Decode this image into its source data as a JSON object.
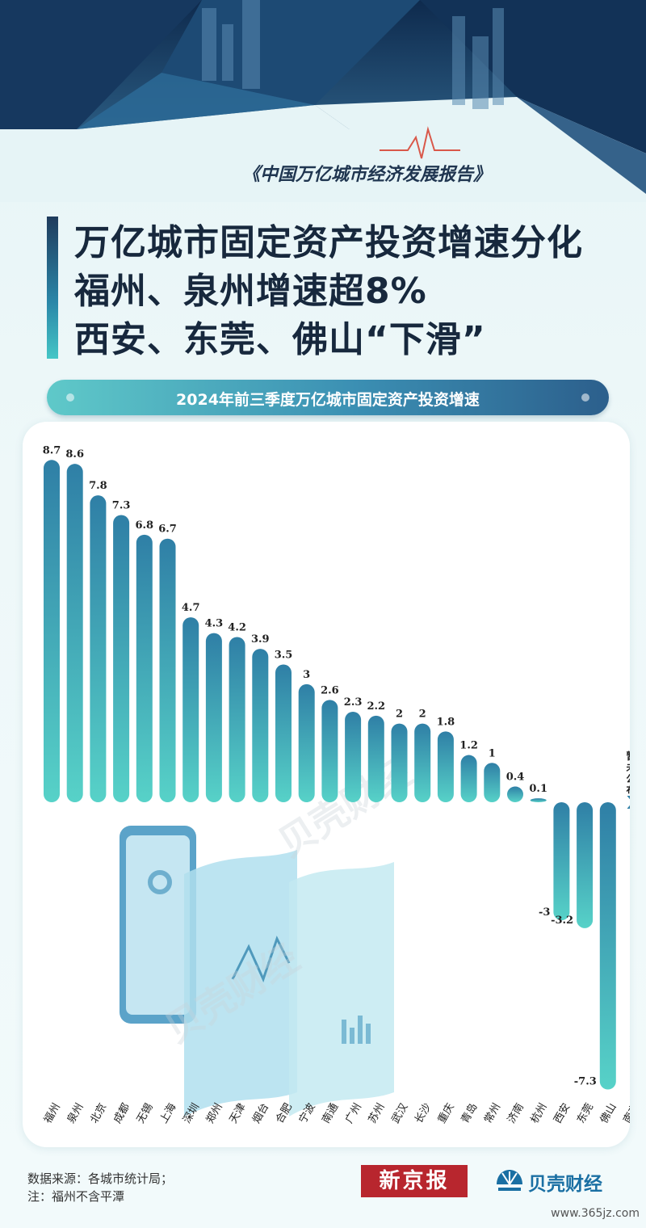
{
  "report_title": "《中国万亿城市经济发展报告》",
  "headline": [
    "万亿城市固定资产投资增速分化",
    "福州、泉州增速超8%",
    "西安、东莞、佛山“下滑”"
  ],
  "colors": {
    "bar_top": "#2f7fa6",
    "bar_bottom": "#57d2c8",
    "accent_red": "#b8262e",
    "headline_dark": "#17283d"
  },
  "chart_data": {
    "type": "bar",
    "title": "2024年前三季度万亿城市固定资产投资增速",
    "categories": [
      "福州",
      "泉州",
      "北京",
      "成都",
      "无锡",
      "上海",
      "深圳",
      "郑州",
      "天津",
      "烟台",
      "合肥",
      "宁波",
      "南通",
      "广州",
      "苏州",
      "武汉",
      "长沙",
      "重庆",
      "青岛",
      "常州",
      "济南",
      "杭州",
      "西安",
      "东莞",
      "佛山",
      "南京"
    ],
    "values": [
      8.7,
      8.6,
      7.8,
      7.3,
      6.8,
      6.7,
      4.7,
      4.3,
      4.2,
      3.9,
      3.5,
      3,
      2.6,
      2.3,
      2.2,
      2,
      2,
      1.8,
      1.2,
      1,
      0.4,
      0.1,
      -3,
      -3.2,
      -7.3,
      null
    ],
    "value_labels": [
      "8.7",
      "8.6",
      "7.8",
      "7.3",
      "6.8",
      "6.7",
      "4.7",
      "4.3",
      "4.2",
      "3.9",
      "3.5",
      "3",
      "2.6",
      "2.3",
      "2.2",
      "2",
      "2",
      "1.8",
      "1.2",
      "1",
      "0.4",
      "0.1",
      "-3",
      "-3.2",
      "-7.3",
      ""
    ],
    "pending_label": "暂未公布",
    "xlabel": "",
    "ylabel": "",
    "grid": false,
    "legend": "none"
  },
  "watermark": "贝壳财经",
  "footer": {
    "source": "数据来源：各城市统计局；",
    "note": "注：福州不含平潭"
  },
  "logos": {
    "xjb": "新京报",
    "bk": "贝壳财经"
  },
  "site_watermark": "www.365jz.com"
}
